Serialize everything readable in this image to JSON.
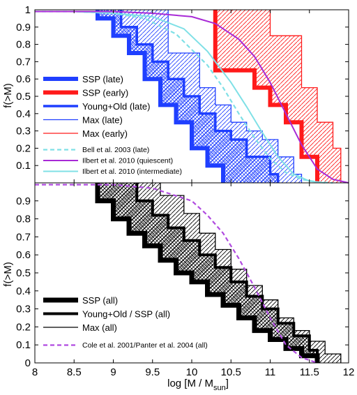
{
  "figure": {
    "xlabel_main": "log [M / M",
    "xlabel_sub": "sun",
    "xlabel_close": "]",
    "ylabel_top": "f(>M)",
    "ylabel_bottom": "f(>M)"
  },
  "chart_data": [
    {
      "type": "line",
      "panel": "top",
      "xlim": [
        8,
        12
      ],
      "ylim": [
        0,
        1
      ],
      "xticks": [
        "8",
        "8.5",
        "9",
        "9.5",
        "10",
        "10.5",
        "11",
        "11.5",
        "12"
      ],
      "yticks": [
        "0.1",
        "0.2",
        "0.3",
        "0.4",
        "0.5",
        "0.6",
        "0.7",
        "0.8",
        "0.9",
        "1"
      ],
      "grid": false,
      "legend_position": "lower-left",
      "colors": {
        "late": "#1f3fff",
        "early": "#ff1a1a",
        "bell": "#7fe0e6",
        "quiescent": "#a829d6",
        "intermediate": "#7fe0e6"
      },
      "series": [
        {
          "name": "SSP (late)",
          "x": [
            8.8,
            8.8,
            9.0,
            9.0,
            9.2,
            9.2,
            9.4,
            9.4,
            9.6,
            9.6,
            9.8,
            9.8,
            10.0,
            10.0,
            10.2,
            10.2,
            10.4,
            10.4
          ],
          "y": [
            1,
            0.95,
            0.95,
            0.85,
            0.85,
            0.75,
            0.75,
            0.6,
            0.6,
            0.45,
            0.45,
            0.35,
            0.35,
            0.2,
            0.2,
            0.1,
            0.1,
            0
          ]
        },
        {
          "name": "SSP (early)",
          "x": [
            10.3,
            10.3,
            10.8,
            10.8,
            11.0,
            11.0,
            11.2,
            11.2,
            11.4,
            11.4,
            11.6,
            11.6
          ],
          "y": [
            1,
            0.65,
            0.65,
            0.55,
            0.55,
            0.45,
            0.45,
            0.35,
            0.35,
            0.15,
            0.15,
            0
          ]
        },
        {
          "name": "Young+Old (late)",
          "x": [
            9.1,
            9.1,
            9.3,
            9.3,
            9.5,
            9.5,
            9.7,
            9.7,
            9.9,
            9.9,
            10.1,
            10.1,
            10.3,
            10.3,
            10.5,
            10.5,
            10.7,
            10.7,
            11.0,
            11.0,
            11.1,
            11.1
          ],
          "y": [
            1,
            0.9,
            0.9,
            0.8,
            0.8,
            0.7,
            0.7,
            0.6,
            0.6,
            0.5,
            0.5,
            0.4,
            0.4,
            0.3,
            0.3,
            0.25,
            0.25,
            0.15,
            0.15,
            0.05,
            0.05,
            0
          ]
        },
        {
          "name": "Max (late)",
          "x": [
            9.7,
            9.7,
            10.1,
            10.1,
            10.3,
            10.3,
            10.5,
            10.5,
            10.7,
            10.7,
            10.9,
            10.9,
            11.1,
            11.1,
            11.3,
            11.3,
            11.4,
            11.4
          ],
          "y": [
            1,
            0.75,
            0.75,
            0.55,
            0.55,
            0.45,
            0.45,
            0.35,
            0.35,
            0.3,
            0.3,
            0.25,
            0.25,
            0.15,
            0.15,
            0.05,
            0.05,
            0
          ]
        },
        {
          "name": "Max (early)",
          "x": [
            11.0,
            11.0,
            11.4,
            11.4,
            11.6,
            11.6,
            11.8,
            11.8,
            11.9,
            11.9
          ],
          "y": [
            1,
            0.85,
            0.85,
            0.55,
            0.55,
            0.35,
            0.35,
            0.2,
            0.2,
            0
          ]
        },
        {
          "name": "Bell et al. 2003 (late)",
          "style": "dashed",
          "x": [
            8.0,
            8.5,
            9.0,
            9.4,
            9.8,
            10.2,
            10.4,
            10.6,
            10.8,
            11.0,
            11.2,
            11.4,
            11.6,
            11.8
          ],
          "y": [
            0.99,
            0.99,
            0.98,
            0.95,
            0.86,
            0.68,
            0.55,
            0.4,
            0.26,
            0.14,
            0.06,
            0.02,
            0.005,
            0
          ]
        },
        {
          "name": "Ilbert et al. 2010 (quiescent)",
          "x": [
            8.0,
            9.0,
            9.5,
            10.0,
            10.3,
            10.6,
            10.8,
            11.0,
            11.2,
            11.4,
            11.6,
            11.8,
            12.0
          ],
          "y": [
            0.99,
            0.99,
            0.98,
            0.96,
            0.92,
            0.83,
            0.73,
            0.58,
            0.4,
            0.22,
            0.08,
            0.02,
            0
          ]
        },
        {
          "name": "Ilbert et al. 2010 (intermediate)",
          "x": [
            8.0,
            8.5,
            9.0,
            9.5,
            9.9,
            10.2,
            10.5,
            10.7,
            10.9,
            11.1,
            11.3,
            11.5,
            11.7
          ],
          "y": [
            0.99,
            0.99,
            0.98,
            0.96,
            0.89,
            0.76,
            0.58,
            0.44,
            0.29,
            0.15,
            0.05,
            0.01,
            0
          ]
        }
      ]
    },
    {
      "type": "line",
      "panel": "bottom",
      "xlim": [
        8,
        12
      ],
      "ylim": [
        0,
        1
      ],
      "xlabel": "log [M / Msun]",
      "xticks": [
        "8",
        "8.5",
        "9",
        "9.5",
        "10",
        "10.5",
        "11",
        "11.5",
        "12"
      ],
      "yticks": [
        "0",
        "0.1",
        "0.2",
        "0.3",
        "0.4",
        "0.5",
        "0.6",
        "0.7",
        "0.8",
        "0.9"
      ],
      "grid": false,
      "legend_position": "lower-left",
      "colors": {
        "all": "#000000",
        "cole": "#b04be0"
      },
      "series": [
        {
          "name": "SSP (all)",
          "x": [
            8.8,
            8.8,
            9.0,
            9.0,
            9.2,
            9.2,
            9.4,
            9.4,
            9.6,
            9.6,
            9.8,
            9.8,
            10.0,
            10.0,
            10.2,
            10.2,
            10.4,
            10.4,
            10.6,
            10.6,
            10.8,
            10.8,
            11.0,
            11.0,
            11.2,
            11.2,
            11.4,
            11.4,
            11.6,
            11.6
          ],
          "y": [
            1,
            0.9,
            0.9,
            0.8,
            0.8,
            0.72,
            0.72,
            0.65,
            0.65,
            0.57,
            0.57,
            0.5,
            0.5,
            0.45,
            0.45,
            0.38,
            0.38,
            0.32,
            0.32,
            0.25,
            0.25,
            0.18,
            0.18,
            0.13,
            0.13,
            0.08,
            0.08,
            0.04,
            0.04,
            0
          ]
        },
        {
          "name": "Young+Old / SSP (all)",
          "x": [
            9.3,
            9.3,
            9.5,
            9.5,
            9.7,
            9.7,
            9.9,
            9.9,
            10.1,
            10.1,
            10.3,
            10.3,
            10.5,
            10.5,
            10.7,
            10.7,
            10.9,
            10.9,
            11.1,
            11.1,
            11.3,
            11.3,
            11.5,
            11.5,
            11.6,
            11.6
          ],
          "y": [
            1,
            0.9,
            0.9,
            0.82,
            0.82,
            0.75,
            0.75,
            0.68,
            0.68,
            0.6,
            0.6,
            0.53,
            0.53,
            0.45,
            0.45,
            0.37,
            0.37,
            0.3,
            0.3,
            0.22,
            0.22,
            0.15,
            0.15,
            0.07,
            0.07,
            0
          ]
        },
        {
          "name": "Max (all)",
          "x": [
            9.6,
            9.6,
            9.9,
            9.9,
            10.1,
            10.1,
            10.3,
            10.3,
            10.5,
            10.5,
            10.7,
            10.7,
            10.9,
            10.9,
            11.1,
            11.1,
            11.3,
            11.3,
            11.5,
            11.5,
            11.7,
            11.7,
            11.9,
            11.9
          ],
          "y": [
            1,
            0.93,
            0.93,
            0.83,
            0.83,
            0.72,
            0.72,
            0.63,
            0.63,
            0.52,
            0.52,
            0.43,
            0.43,
            0.35,
            0.35,
            0.25,
            0.25,
            0.18,
            0.18,
            0.12,
            0.12,
            0.05,
            0.05,
            0
          ]
        },
        {
          "name": "Cole et al. 2001/Panter et al. 2004 (all)",
          "style": "dashed",
          "x": [
            8.0,
            9.0,
            9.5,
            10.0,
            10.2,
            10.4,
            10.6,
            10.8,
            11.0,
            11.2,
            11.4,
            11.6
          ],
          "y": [
            0.99,
            0.99,
            0.97,
            0.9,
            0.82,
            0.72,
            0.58,
            0.42,
            0.25,
            0.1,
            0.03,
            0
          ]
        }
      ]
    }
  ]
}
